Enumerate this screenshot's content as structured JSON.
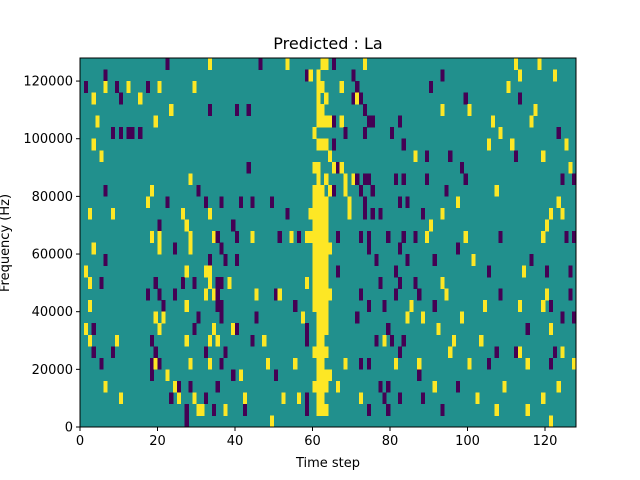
{
  "chart_data": {
    "type": "heatmap",
    "title": "Predicted : La",
    "xlabel": "Time step",
    "ylabel": "Frequency (Hz)",
    "xlim": [
      0,
      128
    ],
    "ylim": [
      0,
      128000
    ],
    "xticks": [
      0,
      20,
      40,
      60,
      80,
      100,
      120
    ],
    "xtick_labels": [
      "0",
      "20",
      "40",
      "60",
      "80",
      "100",
      "120"
    ],
    "yticks": [
      0,
      20000,
      40000,
      60000,
      80000,
      100000,
      120000
    ],
    "ytick_labels": [
      "0",
      "20000",
      "40000",
      "60000",
      "80000",
      "100000",
      "120000"
    ],
    "grid": false,
    "colormap": "viridis",
    "levels": [
      {
        "value": 0,
        "color": "#440154"
      },
      {
        "value": 1,
        "color": "#21908d"
      },
      {
        "value": 2,
        "color": "#fde725"
      }
    ],
    "background_value": 1,
    "bin_height": 4000,
    "time_columns": [
      {
        "t": 0,
        "ones": [],
        "twos": []
      },
      {
        "t": 1,
        "ones": [
          116000
        ],
        "twos": [
          52000,
          32000
        ]
      },
      {
        "t": 2,
        "ones": [],
        "twos": [
          72000,
          48000,
          40000,
          28000
        ]
      },
      {
        "t": 3,
        "ones": [
          32000,
          24000
        ],
        "twos": [
          112000,
          96000,
          60000
        ]
      },
      {
        "t": 4,
        "ones": [],
        "twos": [
          104000
        ]
      },
      {
        "t": 5,
        "ones": [
          48000,
          20000
        ],
        "twos": [
          92000
        ]
      },
      {
        "t": 6,
        "ones": [
          120000,
          80000,
          56000
        ],
        "twos": [
          116000,
          12000
        ]
      },
      {
        "t": 8,
        "ones": [
          100000,
          24000
        ],
        "twos": [
          72000
        ]
      },
      {
        "t": 9,
        "ones": [
          116000
        ],
        "twos": [
          28000
        ]
      },
      {
        "t": 10,
        "ones": [
          112000,
          100000
        ],
        "twos": [
          8000
        ]
      },
      {
        "t": 12,
        "ones": [
          100000
        ],
        "twos": [
          116000
        ]
      },
      {
        "t": 13,
        "ones": [
          100000
        ],
        "twos": []
      },
      {
        "t": 15,
        "ones": [
          100000
        ],
        "twos": [
          112000
        ]
      },
      {
        "t": 17,
        "ones": [
          116000,
          44000
        ],
        "twos": [
          76000
        ]
      },
      {
        "t": 18,
        "ones": [
          28000,
          20000,
          16000
        ],
        "twos": [
          80000,
          64000
        ]
      },
      {
        "t": 19,
        "ones": [
          48000,
          24000
        ],
        "twos": [
          104000,
          36000,
          20000
        ]
      },
      {
        "t": 20,
        "ones": [
          68000,
          44000,
          20000
        ],
        "twos": [
          116000,
          64000,
          60000,
          32000
        ]
      },
      {
        "t": 21,
        "ones": [
          40000
        ],
        "twos": [
          36000
        ]
      },
      {
        "t": 22,
        "ones": [
          124000,
          76000
        ],
        "twos": [
          16000
        ]
      },
      {
        "t": 23,
        "ones": [
          8000
        ],
        "twos": [
          108000
        ]
      },
      {
        "t": 24,
        "ones": [
          60000,
          44000
        ],
        "twos": [
          12000
        ]
      },
      {
        "t": 25,
        "ones": [
          12000,
          8000
        ],
        "twos": [
          8000
        ]
      },
      {
        "t": 26,
        "ones": [
          48000
        ],
        "twos": [
          72000
        ]
      },
      {
        "t": 27,
        "ones": [
          4000,
          0
        ],
        "twos": [
          68000,
          52000,
          40000,
          28000
        ]
      },
      {
        "t": 28,
        "ones": [
          12000
        ],
        "twos": [
          84000,
          64000,
          60000,
          20000
        ]
      },
      {
        "t": 29,
        "ones": [
          48000,
          32000
        ],
        "twos": [
          116000,
          8000
        ]
      },
      {
        "t": 30,
        "ones": [
          80000,
          36000
        ],
        "twos": [
          4000
        ]
      },
      {
        "t": 31,
        "ones": [],
        "twos": [
          4000
        ]
      },
      {
        "t": 32,
        "ones": [
          76000,
          24000,
          8000
        ],
        "twos": [
          52000,
          44000
        ]
      },
      {
        "t": 33,
        "ones": [
          108000,
          56000
        ],
        "twos": [
          124000,
          72000,
          52000,
          48000,
          28000,
          20000
        ]
      },
      {
        "t": 34,
        "ones": [
          4000
        ],
        "twos": [
          64000,
          44000,
          32000
        ]
      },
      {
        "t": 35,
        "ones": [
          64000,
          48000,
          44000,
          40000,
          12000
        ],
        "twos": [
          28000
        ]
      },
      {
        "t": 36,
        "ones": [
          76000,
          60000,
          48000,
          40000,
          36000,
          20000
        ],
        "twos": []
      },
      {
        "t": 37,
        "ones": [
          56000,
          24000
        ],
        "twos": [
          4000
        ]
      },
      {
        "t": 38,
        "ones": [],
        "twos": [
          48000
        ]
      },
      {
        "t": 39,
        "ones": [
          68000,
          16000
        ],
        "twos": [
          32000
        ]
      },
      {
        "t": 40,
        "ones": [
          108000,
          64000,
          56000,
          32000
        ],
        "twos": []
      },
      {
        "t": 41,
        "ones": [
          76000
        ],
        "twos": [
          16000
        ]
      },
      {
        "t": 42,
        "ones": [
          4000
        ],
        "twos": [
          8000
        ]
      },
      {
        "t": 43,
        "ones": [
          108000,
          88000
        ],
        "twos": []
      },
      {
        "t": 44,
        "ones": [
          76000,
          28000
        ],
        "twos": [
          64000
        ]
      },
      {
        "t": 45,
        "ones": [
          36000
        ],
        "twos": [
          44000
        ]
      },
      {
        "t": 46,
        "ones": [
          124000
        ],
        "twos": []
      },
      {
        "t": 47,
        "ones": [],
        "twos": [
          28000
        ]
      },
      {
        "t": 48,
        "ones": [],
        "twos": [
          20000
        ]
      },
      {
        "t": 49,
        "ones": [
          76000
        ],
        "twos": [
          0
        ]
      },
      {
        "t": 50,
        "ones": [
          44000,
          16000
        ],
        "twos": []
      },
      {
        "t": 51,
        "ones": [
          64000
        ],
        "twos": [
          44000
        ]
      },
      {
        "t": 52,
        "ones": [],
        "twos": [
          8000
        ]
      },
      {
        "t": 53,
        "ones": [
          72000
        ],
        "twos": [
          124000
        ]
      },
      {
        "t": 54,
        "ones": [],
        "twos": [
          64000
        ]
      },
      {
        "t": 55,
        "ones": [
          40000
        ],
        "twos": [
          20000
        ]
      },
      {
        "t": 56,
        "ones": [
          64000
        ],
        "twos": [
          8000
        ]
      },
      {
        "t": 57,
        "ones": [],
        "twos": [
          36000
        ]
      },
      {
        "t": 58,
        "ones": [
          120000,
          32000,
          28000,
          8000,
          4000
        ],
        "twos": [
          64000,
          48000
        ]
      },
      {
        "t": 59,
        "ones": [],
        "twos": [
          120000,
          72000,
          64000
        ]
      },
      {
        "t": 60,
        "ones": [],
        "twos": [
          100000,
          88000,
          80000,
          76000,
          72000,
          68000,
          64000,
          60000,
          56000,
          52000,
          48000,
          44000,
          40000,
          24000,
          12000
        ]
      },
      {
        "t": 61,
        "ones": [],
        "twos": [
          120000,
          116000,
          112000,
          108000,
          104000,
          96000,
          88000,
          84000,
          80000,
          76000,
          72000,
          68000,
          64000,
          60000,
          56000,
          52000,
          48000,
          44000,
          40000,
          36000,
          32000,
          28000,
          24000,
          20000,
          16000,
          12000,
          8000,
          4000
        ]
      },
      {
        "t": 62,
        "ones": [],
        "twos": [
          124000,
          116000,
          108000,
          104000,
          96000,
          80000,
          76000,
          72000,
          68000,
          64000,
          60000,
          56000,
          52000,
          48000,
          44000,
          40000,
          36000,
          32000,
          28000,
          24000,
          20000,
          16000,
          12000,
          8000,
          4000
        ]
      },
      {
        "t": 63,
        "ones": [],
        "twos": [
          124000,
          112000,
          104000,
          96000,
          84000,
          76000,
          72000,
          68000,
          64000,
          60000,
          56000,
          52000,
          48000,
          44000,
          40000,
          36000,
          32000,
          24000,
          16000,
          12000,
          4000
        ]
      },
      {
        "t": 64,
        "ones": [],
        "twos": [
          104000,
          92000,
          80000,
          60000,
          44000,
          16000
        ]
      },
      {
        "t": 65,
        "ones": [
          124000,
          104000,
          96000,
          80000
        ],
        "twos": [
          88000
        ]
      },
      {
        "t": 66,
        "ones": [
          88000,
          64000,
          52000
        ],
        "twos": [
          12000
        ]
      },
      {
        "t": 67,
        "ones": [],
        "twos": [
          116000,
          104000,
          88000
        ]
      },
      {
        "t": 68,
        "ones": [
          100000
        ],
        "twos": [
          84000,
          80000,
          20000
        ]
      },
      {
        "t": 69,
        "ones": [],
        "twos": [
          76000,
          72000
        ]
      },
      {
        "t": 70,
        "ones": [
          120000,
          112000
        ],
        "twos": [
          84000
        ]
      },
      {
        "t": 71,
        "ones": [
          116000,
          84000,
          36000
        ],
        "twos": [
          112000
        ]
      },
      {
        "t": 72,
        "ones": [
          112000,
          80000,
          64000,
          44000,
          20000
        ],
        "twos": [
          8000
        ]
      },
      {
        "t": 73,
        "ones": [
          108000,
          100000,
          84000,
          76000,
          72000
        ],
        "twos": [
          124000
        ]
      },
      {
        "t": 74,
        "ones": [
          104000,
          84000,
          64000,
          60000,
          40000,
          20000,
          4000
        ],
        "twos": []
      },
      {
        "t": 75,
        "ones": [
          104000,
          80000,
          72000
        ],
        "twos": []
      },
      {
        "t": 76,
        "ones": [
          56000,
          28000
        ],
        "twos": []
      },
      {
        "t": 77,
        "ones": [
          72000,
          48000,
          12000
        ],
        "twos": []
      },
      {
        "t": 78,
        "ones": [
          40000,
          8000
        ],
        "twos": [
          28000
        ]
      },
      {
        "t": 79,
        "ones": [
          64000,
          32000,
          12000,
          4000
        ],
        "twos": []
      },
      {
        "t": 80,
        "ones": [
          100000,
          28000
        ],
        "twos": []
      },
      {
        "t": 81,
        "ones": [
          84000,
          52000,
          44000
        ],
        "twos": [
          20000
        ]
      },
      {
        "t": 82,
        "ones": [
          104000,
          76000,
          60000,
          48000,
          24000,
          8000
        ],
        "twos": []
      },
      {
        "t": 83,
        "ones": [
          96000,
          84000,
          64000,
          28000
        ],
        "twos": []
      },
      {
        "t": 84,
        "ones": [
          76000,
          56000
        ],
        "twos": [
          36000
        ]
      },
      {
        "t": 85,
        "ones": [],
        "twos": [
          40000
        ]
      },
      {
        "t": 86,
        "ones": [
          64000,
          48000
        ],
        "twos": [
          92000
        ]
      },
      {
        "t": 87,
        "ones": [
          44000,
          16000
        ],
        "twos": [
          20000
        ]
      },
      {
        "t": 88,
        "ones": [
          72000,
          8000
        ],
        "twos": [
          36000
        ]
      },
      {
        "t": 89,
        "ones": [
          92000,
          84000
        ],
        "twos": [
          64000
        ]
      },
      {
        "t": 90,
        "ones": [
          116000
        ],
        "twos": [
          68000
        ]
      },
      {
        "t": 91,
        "ones": [
          56000,
          40000
        ],
        "twos": [
          12000
        ]
      },
      {
        "t": 92,
        "ones": [],
        "twos": [
          32000
        ]
      },
      {
        "t": 93,
        "ones": [
          120000,
          4000
        ],
        "twos": [
          108000,
          72000,
          48000
        ]
      },
      {
        "t": 94,
        "ones": [
          80000
        ],
        "twos": [
          44000
        ]
      },
      {
        "t": 95,
        "ones": [
          92000
        ],
        "twos": [
          24000
        ]
      },
      {
        "t": 96,
        "ones": [],
        "twos": [
          28000
        ]
      },
      {
        "t": 97,
        "ones": [
          60000,
          12000
        ],
        "twos": [
          76000
        ]
      },
      {
        "t": 98,
        "ones": [
          88000
        ],
        "twos": [
          36000
        ]
      },
      {
        "t": 99,
        "ones": [
          112000,
          84000
        ],
        "twos": [
          64000
        ]
      },
      {
        "t": 100,
        "ones": [],
        "twos": [
          108000,
          20000
        ]
      },
      {
        "t": 101,
        "ones": [],
        "twos": [
          56000
        ]
      },
      {
        "t": 102,
        "ones": [],
        "twos": [
          8000
        ]
      },
      {
        "t": 103,
        "ones": [],
        "twos": [
          28000
        ]
      },
      {
        "t": 104,
        "ones": [],
        "twos": [
          40000
        ]
      },
      {
        "t": 105,
        "ones": [
          52000,
          20000
        ],
        "twos": [
          96000
        ]
      },
      {
        "t": 106,
        "ones": [],
        "twos": [
          104000
        ]
      },
      {
        "t": 107,
        "ones": [
          24000
        ],
        "twos": [
          80000,
          4000
        ]
      },
      {
        "t": 108,
        "ones": [
          64000,
          44000
        ],
        "twos": [
          100000
        ]
      },
      {
        "t": 109,
        "ones": [],
        "twos": [
          12000
        ]
      },
      {
        "t": 110,
        "ones": [
          116000
        ],
        "twos": [
          116000
        ]
      },
      {
        "t": 111,
        "ones": [],
        "twos": [
          96000
        ]
      },
      {
        "t": 112,
        "ones": [
          92000,
          24000
        ],
        "twos": [
          124000
        ]
      },
      {
        "t": 113,
        "ones": [
          112000
        ],
        "twos": [
          120000,
          40000,
          24000
        ]
      },
      {
        "t": 114,
        "ones": [],
        "twos": [
          52000
        ]
      },
      {
        "t": 115,
        "ones": [
          32000
        ],
        "twos": [
          20000,
          4000
        ]
      },
      {
        "t": 116,
        "ones": [
          56000
        ],
        "twos": [
          104000
        ]
      },
      {
        "t": 117,
        "ones": [],
        "twos": [
          108000
        ]
      },
      {
        "t": 118,
        "ones": [],
        "twos": [
          124000
        ]
      },
      {
        "t": 119,
        "ones": [],
        "twos": [
          92000,
          64000,
          40000,
          8000
        ]
      },
      {
        "t": 120,
        "ones": [
          52000
        ],
        "twos": [
          68000,
          44000
        ]
      },
      {
        "t": 121,
        "ones": [
          40000,
          20000
        ],
        "twos": [
          72000,
          32000,
          0
        ]
      },
      {
        "t": 122,
        "ones": [
          24000
        ],
        "twos": [
          120000
        ]
      },
      {
        "t": 123,
        "ones": [
          100000
        ],
        "twos": [
          76000,
          12000
        ]
      },
      {
        "t": 124,
        "ones": [
          84000,
          36000
        ],
        "twos": [
          72000,
          24000
        ]
      },
      {
        "t": 125,
        "ones": [
          64000
        ],
        "twos": [
          96000
        ]
      },
      {
        "t": 126,
        "ones": [
          52000,
          44000
        ],
        "twos": [
          88000
        ]
      },
      {
        "t": 127,
        "ones": [
          84000,
          64000,
          36000
        ],
        "twos": [
          20000
        ]
      }
    ]
  }
}
